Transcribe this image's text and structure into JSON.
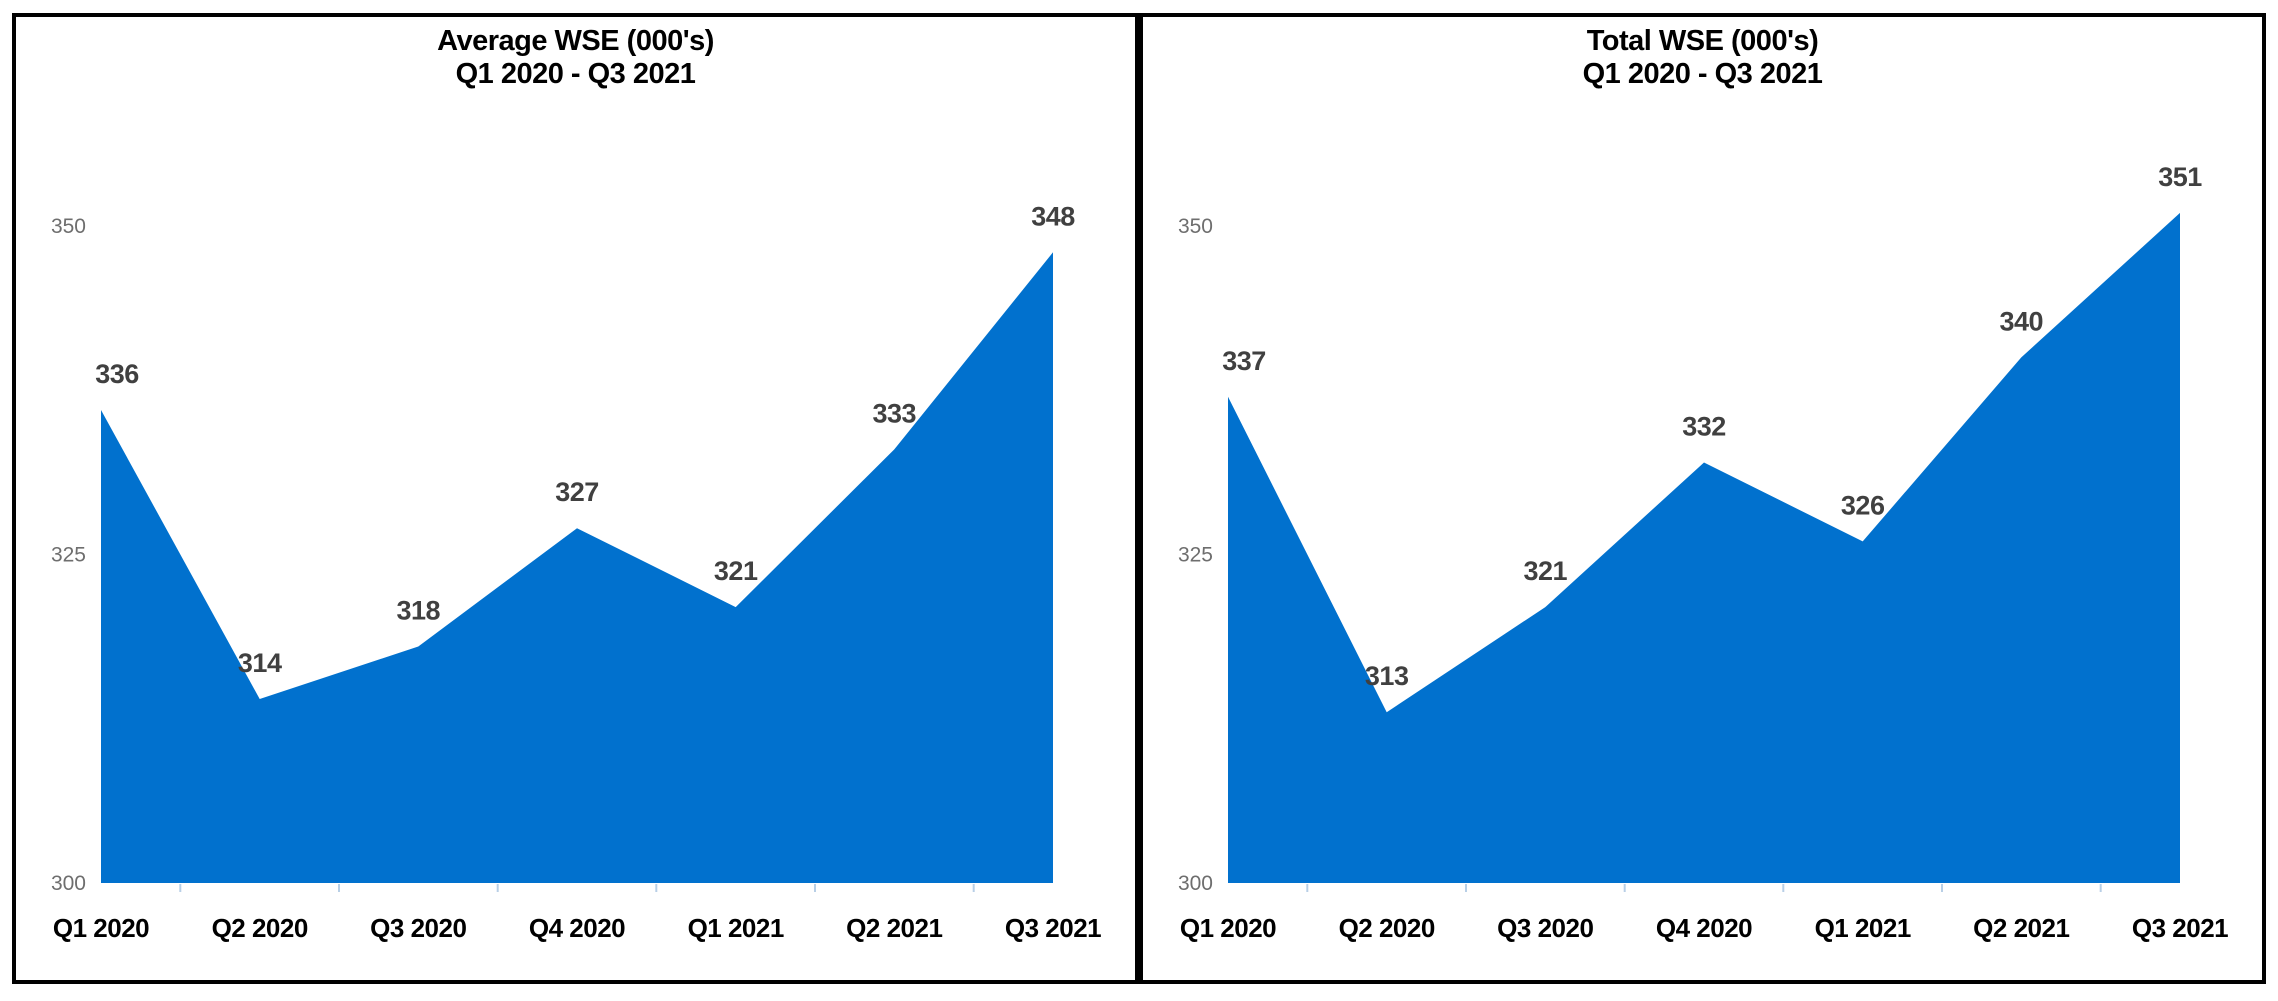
{
  "colors": {
    "area_fill": "#0171CE",
    "data_label": "#404040",
    "axis_tick_label": "#6E6E6E",
    "x_axis_label": "#000000",
    "axis_tick_mark": "#B8CFE6",
    "panel_border": "#000000",
    "background": "#FFFFFF"
  },
  "chart_data": [
    {
      "type": "area",
      "title": "Average WSE (000's)",
      "subtitle": "Q1 2020 - Q3 2021",
      "categories": [
        "Q1 2020",
        "Q2 2020",
        "Q3 2020",
        "Q4 2020",
        "Q1 2021",
        "Q2 2021",
        "Q3 2021"
      ],
      "values": [
        336,
        314,
        318,
        327,
        321,
        333,
        348
      ],
      "data_labels": [
        336,
        314,
        318,
        327,
        321,
        333,
        348
      ],
      "ylim": [
        300,
        355
      ],
      "yticks": [
        300,
        325,
        350
      ],
      "grid": false,
      "legend": false
    },
    {
      "type": "area",
      "title": "Total WSE (000's)",
      "subtitle": "Q1 2020 - Q3 2021",
      "categories": [
        "Q1 2020",
        "Q2 2020",
        "Q3 2020",
        "Q4 2020",
        "Q1 2021",
        "Q2 2021",
        "Q3 2021"
      ],
      "values": [
        337,
        313,
        321,
        332,
        326,
        340,
        351
      ],
      "data_labels": [
        337,
        313,
        321,
        332,
        326,
        340,
        351
      ],
      "ylim": [
        300,
        355
      ],
      "yticks": [
        300,
        325,
        350
      ],
      "grid": false,
      "legend": false
    }
  ]
}
